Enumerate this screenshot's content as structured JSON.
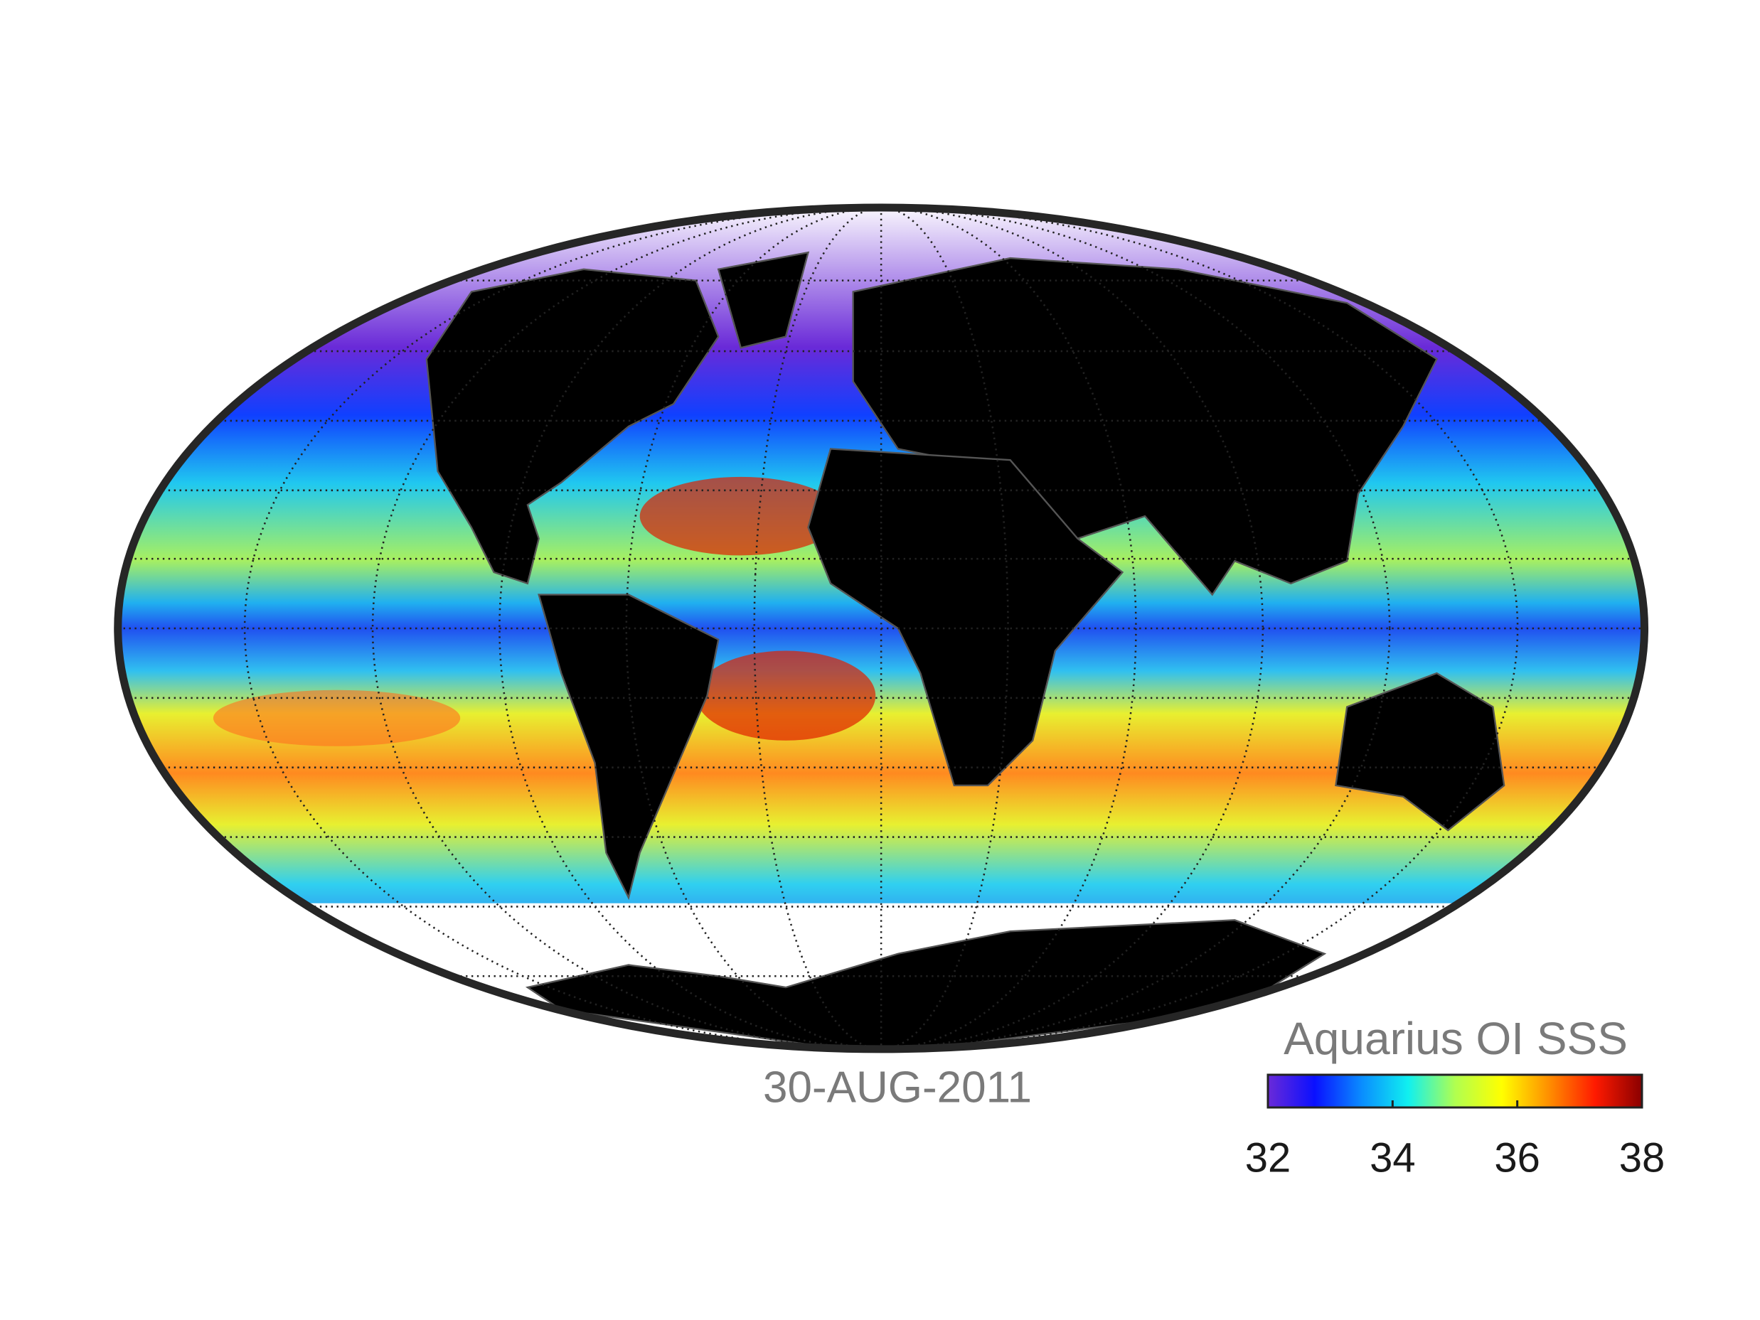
{
  "map": {
    "date": "30-AUG-2011",
    "colorbar": {
      "title": "Aquarius OI SSS",
      "lim": [
        32,
        38
      ],
      "ticks": [
        32,
        34,
        36,
        38
      ],
      "colors": [
        "#6a2ad8",
        "#0a10ff",
        "#0a8cff",
        "#10f0f0",
        "#b0ff50",
        "#ffff00",
        "#ff9000",
        "#ff1a00",
        "#8a0000"
      ]
    }
  }
}
